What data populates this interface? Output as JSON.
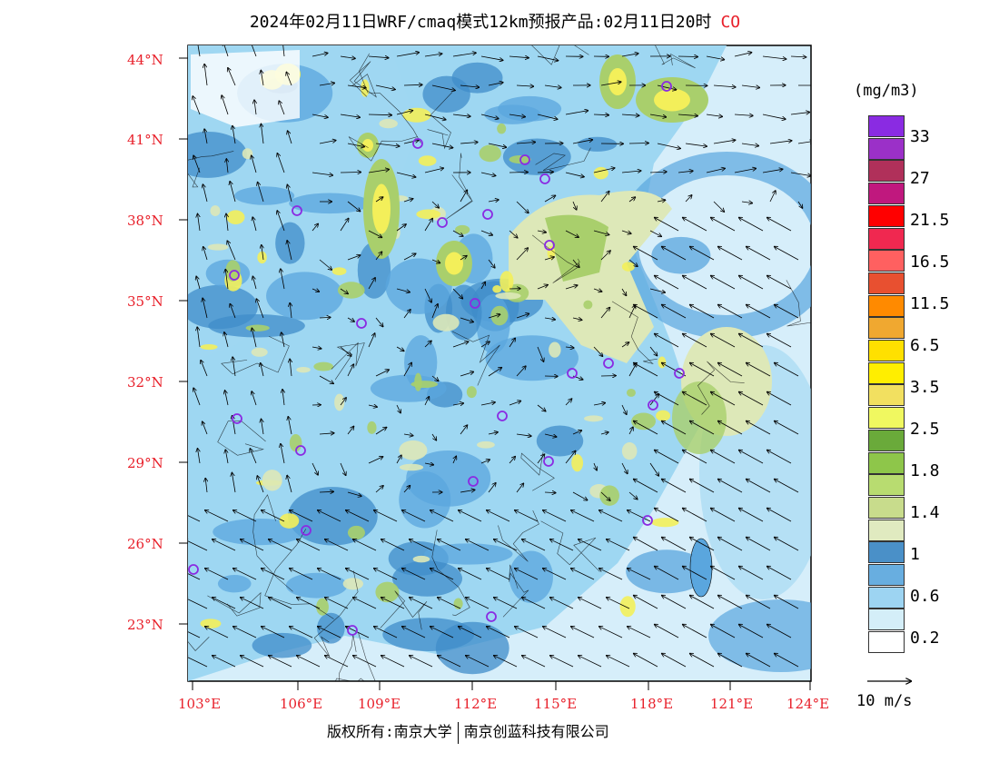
{
  "title": {
    "text": "2024年02月11日WRF/cmaq模式12km预报产品:02月11日20时",
    "pollutant": "CO"
  },
  "map": {
    "latitude_labels": [
      "44°N",
      "41°N",
      "38°N",
      "35°N",
      "32°N",
      "29°N",
      "26°N",
      "23°N"
    ],
    "longitude_labels": [
      "103°E",
      "106°E",
      "109°E",
      "112°E",
      "115°E",
      "118°E",
      "121°E",
      "124°E"
    ],
    "colors": {
      "sea_background": "#d6eefa",
      "low_concentration": "#9ed7f2",
      "medium_low": "#5aa6de",
      "medium": "#3f8cca",
      "elevated": "#dde8b8",
      "high": "#a9cf6c",
      "peak": "#f3ef5a",
      "border_line": "#000000",
      "wind_arrow": "#000000",
      "station_marker": "#8a2be2"
    },
    "station_marker_icon": "circle-station-icon",
    "wind_arrow_icon": "wind-vector-arrow-icon"
  },
  "legend": {
    "unit": "(mg/m3)",
    "labels": [
      "33",
      "27",
      "21.5",
      "16.5",
      "11.5",
      "6.5",
      "3.5",
      "2.5",
      "1.8",
      "1.4",
      "1",
      "0.6",
      "0.2"
    ],
    "colors": [
      "#8a2be2",
      "#9b30c8",
      "#b0305a",
      "#c0187e",
      "#ff0000",
      "#f02850",
      "#ff6060",
      "#e85030",
      "#ff8a00",
      "#f0a830",
      "#ffe000",
      "#ffee00",
      "#f2e060",
      "#f0f860",
      "#6aaa3a",
      "#8ec64a",
      "#b8dc70",
      "#c8dc8c",
      "#e0eac0",
      "#4a90c8",
      "#68aee0",
      "#9dd4f2",
      "#d4eef8",
      "#ffffff"
    ],
    "wind_scale_label": "10 m/s"
  },
  "copyright": {
    "left": "版权所有:南京大学",
    "right": "南京创蓝科技有限公司"
  }
}
